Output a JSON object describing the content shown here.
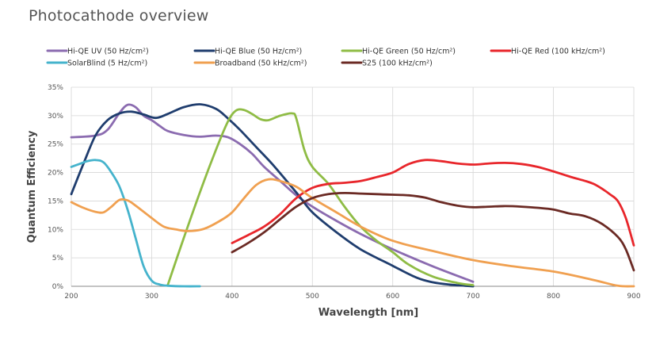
{
  "chart_data": {
    "type": "line",
    "title": "Photocathode overview",
    "xlabel": "Wavelength [nm]",
    "ylabel": "Quantum Efficiency",
    "xlim": [
      200,
      900
    ],
    "ylim": [
      0,
      35
    ],
    "x_ticks": [
      200,
      300,
      400,
      500,
      600,
      700,
      800,
      900
    ],
    "y_ticks": [
      0,
      5,
      10,
      15,
      20,
      25,
      30,
      35
    ],
    "y_tick_labels": [
      "0%",
      "5%",
      "10%",
      "15%",
      "20%",
      "25%",
      "30%",
      "35%"
    ],
    "grid": true,
    "legend_position": "top",
    "series": [
      {
        "name": "Hi-QE UV (50 Hz/cm²)",
        "color": "#8b6bb0",
        "x": [
          200,
          230,
          245,
          260,
          270,
          280,
          290,
          300,
          310,
          320,
          340,
          360,
          380,
          395,
          410,
          425,
          440,
          460,
          480,
          500,
          530,
          560,
          600,
          650,
          700
        ],
        "y": [
          26.2,
          26.5,
          27.5,
          30.5,
          31.9,
          31.5,
          30,
          29.2,
          28.2,
          27.3,
          26.6,
          26.3,
          26.5,
          26.2,
          25,
          23.3,
          21,
          18.5,
          16,
          14,
          11.5,
          9.2,
          6.5,
          3.5,
          0.8
        ]
      },
      {
        "name": "Hi-QE Blue (50 Hz/cm²)",
        "color": "#1f3d6e",
        "x": [
          200,
          215,
          230,
          245,
          260,
          275,
          290,
          305,
          320,
          340,
          360,
          380,
          395,
          410,
          430,
          450,
          480,
          500,
          530,
          560,
          600,
          630,
          650,
          670,
          690,
          700
        ],
        "y": [
          16.2,
          21.5,
          26.5,
          29.2,
          30.4,
          30.7,
          30.2,
          29.6,
          30.3,
          31.5,
          32,
          31.2,
          29.5,
          27.5,
          24.5,
          21.5,
          16.5,
          13,
          9.5,
          6.5,
          3.6,
          1.5,
          0.7,
          0.3,
          0.1,
          0
        ]
      },
      {
        "name": "Hi-QE Green (50 Hz/cm²)",
        "color": "#8fbc45",
        "x": [
          320,
          340,
          360,
          380,
          395,
          405,
          415,
          425,
          435,
          445,
          460,
          475,
          480,
          490,
          500,
          520,
          540,
          560,
          580,
          600,
          620,
          650,
          680,
          700
        ],
        "y": [
          0.2,
          8.5,
          16.5,
          24,
          29,
          30.9,
          31,
          30.3,
          29.4,
          29.2,
          30,
          30.4,
          29.5,
          24,
          21,
          18,
          14,
          10.5,
          8,
          6,
          3.8,
          1.7,
          0.6,
          0.2
        ]
      },
      {
        "name": "Hi-QE Red (100 kHz/cm²)",
        "color": "#e8262b",
        "x": [
          400,
          420,
          440,
          460,
          480,
          500,
          520,
          540,
          560,
          580,
          600,
          620,
          640,
          660,
          680,
          700,
          720,
          740,
          760,
          780,
          800,
          820,
          840,
          850,
          860,
          870,
          880,
          890,
          900
        ],
        "y": [
          7.6,
          9,
          10.5,
          12.7,
          15.5,
          17.3,
          18,
          18.2,
          18.5,
          19.2,
          20,
          21.5,
          22.2,
          22,
          21.6,
          21.4,
          21.6,
          21.7,
          21.5,
          21,
          20.2,
          19.3,
          18.5,
          18,
          17.2,
          16.2,
          15,
          12,
          7.2
        ]
      },
      {
        "name": "SolarBlind (5 Hz/cm²)",
        "color": "#45b3cc",
        "x": [
          200,
          210,
          220,
          230,
          240,
          250,
          260,
          270,
          280,
          290,
          300,
          310,
          320,
          340,
          360
        ],
        "y": [
          21,
          21.5,
          22,
          22.2,
          21.8,
          20,
          17.5,
          13.5,
          8.5,
          3.5,
          1,
          0.3,
          0.1,
          0,
          0
        ]
      },
      {
        "name": "Broadband (50 kHz/cm²)",
        "color": "#f0a050",
        "x": [
          200,
          215,
          230,
          240,
          250,
          260,
          270,
          280,
          300,
          315,
          330,
          345,
          365,
          385,
          400,
          415,
          430,
          445,
          460,
          480,
          500,
          530,
          560,
          600,
          650,
          700,
          750,
          800,
          850,
          880,
          900
        ],
        "y": [
          14.8,
          13.8,
          13.1,
          13,
          14,
          15.2,
          15.1,
          14.2,
          12,
          10.5,
          10,
          9.7,
          10.1,
          11.5,
          13,
          15.5,
          17.8,
          18.8,
          18.5,
          17.5,
          15.5,
          13,
          10.5,
          8,
          6.2,
          4.6,
          3.5,
          2.6,
          1.1,
          0.1,
          0
        ]
      },
      {
        "name": "S25 (100 kHz/cm²)",
        "color": "#6b2a24",
        "x": [
          400,
          420,
          440,
          460,
          480,
          500,
          520,
          540,
          560,
          580,
          600,
          620,
          640,
          660,
          680,
          700,
          720,
          740,
          760,
          780,
          800,
          820,
          840,
          860,
          880,
          890,
          900
        ],
        "y": [
          6,
          7.6,
          9.5,
          11.8,
          14,
          15.5,
          16.2,
          16.4,
          16.3,
          16.2,
          16.1,
          16,
          15.6,
          14.8,
          14.2,
          13.9,
          14,
          14.1,
          14,
          13.8,
          13.5,
          12.8,
          12.3,
          11,
          8.7,
          6.5,
          2.8
        ]
      }
    ]
  }
}
